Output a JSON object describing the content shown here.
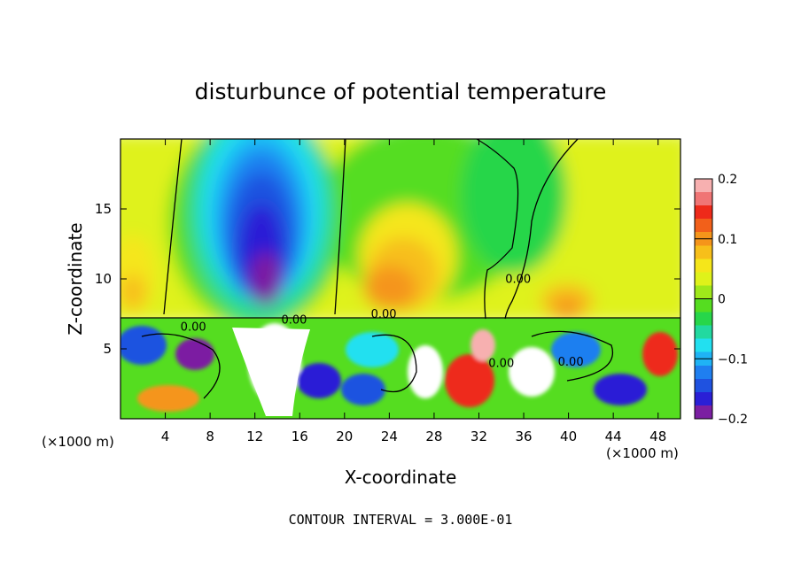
{
  "chart_data": {
    "type": "heatmap",
    "title": "disturbunce of potential temperature",
    "xlabel": "X-coordinate",
    "ylabel": "Z-coordinate",
    "x_unit": "(×1000 m)",
    "y_unit": "(×1000 m)",
    "xlim": [
      0,
      50
    ],
    "ylim": [
      0,
      20
    ],
    "x_ticks": [
      4,
      8,
      12,
      16,
      20,
      24,
      28,
      32,
      36,
      40,
      44,
      48
    ],
    "y_ticks": [
      5,
      10,
      15
    ],
    "footer": "CONTOUR INTERVAL = 3.000E-01",
    "colorbar": {
      "min": -0.2,
      "max": 0.2,
      "tick_values": [
        0.2,
        0.1,
        0,
        -0.1,
        -0.2
      ],
      "tick_labels": [
        "0.2",
        "0.1",
        "0",
        "−0.1",
        "−0.2"
      ],
      "colors": [
        "#7b1fa2",
        "#2a1fd6",
        "#1f52e0",
        "#1f7ff0",
        "#1fb3f5",
        "#22e0f0",
        "#22d9a0",
        "#27d64a",
        "#55dd20",
        "#9fe81a",
        "#dff21a",
        "#f5e61a",
        "#f7bf1a",
        "#f5951a",
        "#f2601a",
        "#ee2a1a",
        "#f07575",
        "#f7b0b0"
      ]
    },
    "contour_labels": [
      {
        "text": "0.00",
        "x": 6.5,
        "y": 6.3
      },
      {
        "text": "0.00",
        "x": 15.5,
        "y": 6.8
      },
      {
        "text": "0.00",
        "x": 23.5,
        "y": 7.2
      },
      {
        "text": "0.00",
        "x": 35.5,
        "y": 9.7
      },
      {
        "text": "0.00",
        "x": 34.0,
        "y": 3.7
      },
      {
        "text": "0.00",
        "x": 40.2,
        "y": 3.8
      }
    ]
  }
}
